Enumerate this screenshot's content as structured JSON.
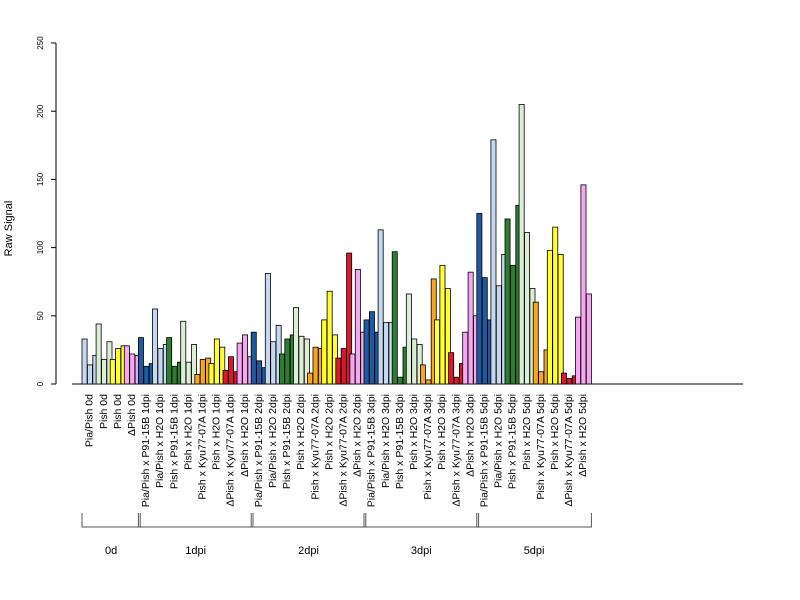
{
  "chart_data": {
    "type": "bar",
    "ylabel": "Raw Signal",
    "ylim": [
      0,
      250
    ],
    "yticks": [
      "0",
      "50",
      "100",
      "150",
      "200",
      "250"
    ],
    "categories": [
      "Pia/Pish 0d",
      "Pish 0d",
      "Pish 0d",
      "ΔPish 0d",
      "Pia/Pish x P91-15B 1dpi",
      "Pia/Pish x H2O 1dpi",
      "Pish x P91-15B 1dpi",
      "Pish x H2O 1dpi",
      "Pish x Kyu77-07A 1dpi",
      "Pish x H2O 1dpi",
      "ΔPish x Kyu77-07A 1dpi",
      "ΔPish x H2O 1dpi",
      "Pia/Pish x P91-15B 2dpi",
      "Pia/Pish x H2O 2dpi",
      "Pish x P91-15B 2dpi",
      "Pish x H2O 2dpi",
      "Pish x Kyu77-07A 2dpi",
      "Pish x H2O 2dpi",
      "ΔPish x Kyu77-07A 2dpi",
      "ΔPish x H2O 2dpi",
      "Pia/Pish x P91-15B 3dpi",
      "Pia/Pish x H2O 3dpi",
      "Pish x P91-15B 3dpi",
      "Pish x H2O 3dpi",
      "Pish x Kyu77-07A 3dpi",
      "Pish x H2O 3dpi",
      "ΔPish x Kyu77-07A 3dpi",
      "ΔPish x H2O 3dpi",
      "Pia/Pish x P91-15B 5dpi",
      "Pia/Pish x H2O 5dpi",
      "Pish x P91-15B 5dpi",
      "Pish x H2O 5dpi",
      "Pish x Kyu77-07A 5dpi",
      "Pish x H2O 5dpi",
      "ΔPish x Kyu77-07A 5dpi",
      "ΔPish x H2O 5dpi"
    ],
    "values": [
      [
        33,
        14,
        21
      ],
      [
        44,
        18,
        31
      ],
      [
        18,
        26,
        28
      ],
      [
        28,
        22,
        21
      ],
      [
        34,
        13,
        15
      ],
      [
        55,
        26,
        29
      ],
      [
        34,
        13,
        16
      ],
      [
        46,
        16,
        29
      ],
      [
        7,
        18,
        19
      ],
      [
        15,
        33,
        27
      ],
      [
        10,
        20,
        9
      ],
      [
        30,
        36,
        20
      ],
      [
        38,
        17,
        12
      ],
      [
        81,
        31,
        43
      ],
      [
        22,
        33,
        36
      ],
      [
        56,
        35,
        33
      ],
      [
        8,
        27,
        26
      ],
      [
        47,
        68,
        36
      ],
      [
        19,
        26,
        96
      ],
      [
        22,
        84,
        38
      ],
      [
        47,
        53,
        38
      ],
      [
        113,
        45,
        45
      ],
      [
        97,
        5,
        27
      ],
      [
        66,
        33,
        29
      ],
      [
        14,
        3,
        77
      ],
      [
        47,
        87,
        70
      ],
      [
        23,
        5,
        15
      ],
      [
        38,
        82,
        50
      ],
      [
        125,
        78,
        47
      ],
      [
        179,
        72,
        95
      ],
      [
        121,
        87,
        131
      ],
      [
        205,
        111,
        70
      ],
      [
        60,
        9,
        25
      ],
      [
        98,
        115,
        95
      ],
      [
        8,
        4,
        6
      ],
      [
        49,
        146,
        66
      ]
    ],
    "colors": [
      "#c6d8ef",
      "#dcefd6",
      "#ffff33",
      "#f7a6f0",
      "#1f5aa0",
      "#c6d8ef",
      "#2e7d32",
      "#dcefd6",
      "#f5a623",
      "#ffff33",
      "#d7192a",
      "#f7a6f0"
    ],
    "color_index": [
      0,
      1,
      2,
      3,
      4,
      5,
      6,
      7,
      8,
      9,
      10,
      11,
      4,
      5,
      6,
      7,
      8,
      9,
      10,
      11,
      4,
      5,
      6,
      7,
      8,
      9,
      10,
      11,
      4,
      5,
      6,
      7,
      8,
      9,
      10,
      11
    ],
    "groups": [
      {
        "label": "0d",
        "start": 0,
        "end": 3
      },
      {
        "label": "1dpi",
        "start": 4,
        "end": 11
      },
      {
        "label": "2dpi",
        "start": 12,
        "end": 19
      },
      {
        "label": "3dpi",
        "start": 20,
        "end": 27
      },
      {
        "label": "5dpi",
        "start": 28,
        "end": 35
      }
    ],
    "grid": false,
    "legend": "none"
  }
}
